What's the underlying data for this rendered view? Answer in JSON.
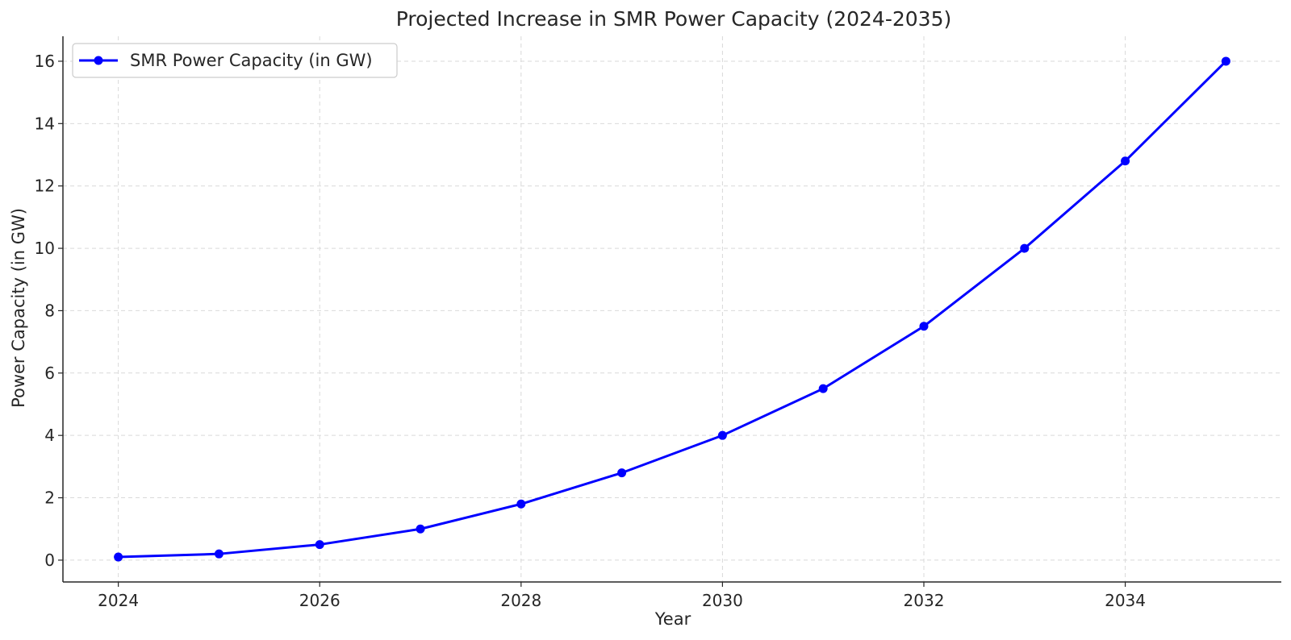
{
  "chart_data": {
    "type": "line",
    "title": "Projected Increase in SMR Power Capacity (2024-2035)",
    "xlabel": "Year",
    "ylabel": "Power Capacity (in GW)",
    "x": [
      2024,
      2025,
      2026,
      2027,
      2028,
      2029,
      2030,
      2031,
      2032,
      2033,
      2034,
      2035
    ],
    "series": [
      {
        "name": "SMR Power Capacity (in GW)",
        "color": "#0000ff",
        "marker": "circle",
        "values": [
          0.1,
          0.2,
          0.5,
          1.0,
          1.8,
          2.8,
          4.0,
          5.5,
          7.5,
          10.0,
          12.8,
          16.0
        ]
      }
    ],
    "xlim": [
      2023.45,
      2035.55
    ],
    "ylim": [
      -0.7,
      16.8
    ],
    "xticks": [
      2024,
      2026,
      2028,
      2030,
      2032,
      2034
    ],
    "yticks": [
      0,
      2,
      4,
      6,
      8,
      10,
      12,
      14,
      16
    ],
    "grid": true,
    "legend_position": "top-left"
  }
}
